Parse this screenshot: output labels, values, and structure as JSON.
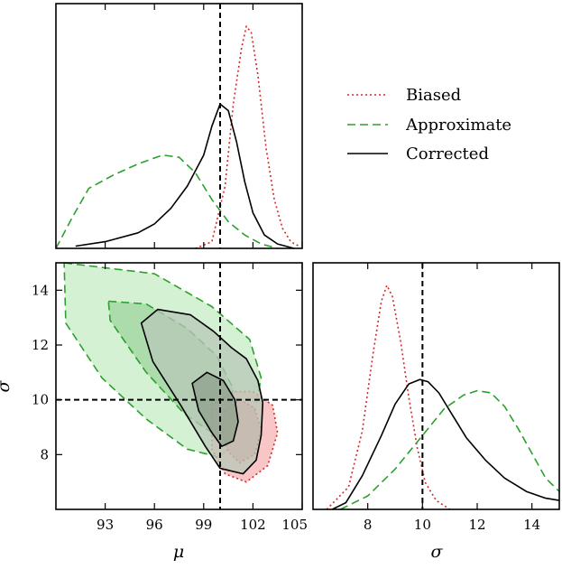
{
  "chart_data": {
    "type": "corner",
    "legend": {
      "placement": "top-right",
      "entries": [
        {
          "label": "Biased",
          "color": "#d62728",
          "style": "dotted"
        },
        {
          "label": "Approximate",
          "color": "#2ca02c",
          "style": "dashed"
        },
        {
          "label": "Corrected",
          "color": "#000000",
          "style": "solid"
        }
      ]
    },
    "truth": {
      "mu": 100,
      "sigma": 10
    },
    "panels": {
      "mu_marginal": {
        "xlim": [
          90,
          105
        ],
        "series": [
          {
            "name": "Biased",
            "x": [
              98.5,
              99.5,
              100.3,
              100.8,
              101.3,
              101.6,
              101.9,
              102.3,
              102.8,
              103.3,
              103.8,
              104.3,
              104.8
            ],
            "y": [
              0.0,
              0.03,
              0.28,
              0.65,
              0.9,
              1.0,
              0.97,
              0.78,
              0.45,
              0.22,
              0.09,
              0.03,
              0.01
            ]
          },
          {
            "name": "Approximate",
            "x": [
              90,
              91,
              92,
              93.5,
              95,
              96.5,
              97.5,
              98.5,
              99.5,
              100.5,
              101.5,
              102.5,
              103.5
            ],
            "y": [
              0.0,
              0.14,
              0.27,
              0.33,
              0.38,
              0.42,
              0.41,
              0.34,
              0.22,
              0.12,
              0.06,
              0.02,
              0.0
            ]
          },
          {
            "name": "Corrected",
            "x": [
              91.2,
              93,
              95,
              96,
              97,
              98,
              99,
              99.5,
              100,
              100.5,
              101,
              101.5,
              102,
              102.7,
              103.5,
              104.5
            ],
            "y": [
              0.01,
              0.03,
              0.07,
              0.11,
              0.18,
              0.28,
              0.42,
              0.55,
              0.65,
              0.62,
              0.48,
              0.3,
              0.16,
              0.06,
              0.02,
              0.0
            ]
          }
        ]
      },
      "joint": {
        "xlim": [
          90,
          105
        ],
        "ylim": [
          6,
          15
        ],
        "xticks": [
          "93",
          "96",
          "99",
          "102",
          "105"
        ],
        "yticks": [
          "8",
          "10",
          "12",
          "14"
        ],
        "xlabel": "μ",
        "ylabel": "σ",
        "regions": [
          {
            "name": "Approximate",
            "level": "outer",
            "fill": "#c6ecc6",
            "points": [
              [
                90.5,
                15
              ],
              [
                96,
                14.6
              ],
              [
                99.5,
                13.4
              ],
              [
                101.8,
                12.2
              ],
              [
                102.5,
                10.8
              ],
              [
                102,
                9.2
              ],
              [
                100,
                7.9
              ],
              [
                98,
                8.2
              ],
              [
                95.5,
                9.3
              ],
              [
                92.8,
                10.8
              ],
              [
                90.6,
                12.8
              ]
            ]
          },
          {
            "name": "Approximate",
            "level": "inner",
            "fill": "#9fd39f",
            "points": [
              [
                93.2,
                13.6
              ],
              [
                95.5,
                13.5
              ],
              [
                98,
                12.6
              ],
              [
                99.8,
                11.6
              ],
              [
                100.8,
                10.4
              ],
              [
                100.6,
                9.3
              ],
              [
                99.5,
                8.8
              ],
              [
                97.8,
                9.5
              ],
              [
                95.5,
                11
              ],
              [
                93.3,
                12.9
              ]
            ]
          },
          {
            "name": "Biased",
            "level": "outer",
            "fill": "#f6b3b3",
            "points": [
              [
                99.5,
                9.8
              ],
              [
                100.8,
                10.3
              ],
              [
                102,
                10.3
              ],
              [
                103.2,
                9.8
              ],
              [
                103.5,
                8.8
              ],
              [
                102.9,
                7.6
              ],
              [
                101.6,
                7.0
              ],
              [
                100.3,
                7.3
              ],
              [
                99.5,
                8.2
              ]
            ]
          },
          {
            "name": "Biased",
            "level": "inner",
            "fill": "#ee8f8f",
            "points": [
              [
                100.3,
                9.6
              ],
              [
                101.2,
                10.0
              ],
              [
                102.1,
                9.7
              ],
              [
                102.5,
                8.9
              ],
              [
                102.1,
                8.0
              ],
              [
                101.2,
                7.7
              ],
              [
                100.5,
                8.1
              ],
              [
                100.1,
                8.9
              ]
            ]
          },
          {
            "name": "Corrected",
            "level": "outer",
            "fill": "#b8c7b8",
            "points": [
              [
                95.2,
                12.8
              ],
              [
                96.2,
                13.3
              ],
              [
                98.2,
                13.1
              ],
              [
                99.6,
                12.5
              ],
              [
                100.7,
                11.9
              ],
              [
                101.6,
                11.5
              ],
              [
                102.3,
                10.7
              ],
              [
                102.6,
                9.9
              ],
              [
                102.5,
                8.7
              ],
              [
                102.2,
                7.8
              ],
              [
                101.4,
                7.3
              ],
              [
                100,
                7.5
              ],
              [
                99.1,
                8.3
              ],
              [
                97.6,
                9.8
              ],
              [
                95.9,
                11.4
              ]
            ]
          },
          {
            "name": "Corrected",
            "level": "inner",
            "fill": "#8da08d",
            "points": [
              [
                98.3,
                10.6
              ],
              [
                99.2,
                11
              ],
              [
                100.2,
                10.7
              ],
              [
                100.9,
                10.0
              ],
              [
                101.1,
                9.2
              ],
              [
                100.8,
                8.5
              ],
              [
                100.1,
                8.3
              ],
              [
                99.5,
                8.8
              ],
              [
                98.7,
                9.6
              ]
            ]
          }
        ]
      },
      "sigma_marginal": {
        "xlim": [
          6,
          15
        ],
        "xticks": [
          "8",
          "10",
          "12",
          "14"
        ],
        "xlabel": "σ",
        "series": [
          {
            "name": "Biased",
            "x": [
              6.5,
              7.3,
              7.8,
              8.2,
              8.5,
              8.7,
              8.9,
              9.2,
              9.5,
              9.8,
              10.1,
              10.5,
              11.0
            ],
            "y": [
              0.0,
              0.1,
              0.35,
              0.7,
              0.93,
              1.0,
              0.95,
              0.75,
              0.5,
              0.28,
              0.12,
              0.04,
              0.0
            ]
          },
          {
            "name": "Approximate",
            "x": [
              7.0,
              8.0,
              9.0,
              10.0,
              10.8,
              11.5,
              12.0,
              12.5,
              13.0,
              13.5,
              14.0,
              14.5,
              15.0
            ],
            "y": [
              0.0,
              0.06,
              0.18,
              0.33,
              0.45,
              0.51,
              0.53,
              0.52,
              0.46,
              0.36,
              0.25,
              0.14,
              0.08
            ]
          },
          {
            "name": "Corrected",
            "x": [
              6.7,
              7.2,
              7.8,
              8.5,
              9.0,
              9.5,
              9.9,
              10.2,
              10.6,
              11.0,
              11.6,
              12.3,
              13.0,
              13.8,
              14.5,
              15.0
            ],
            "y": [
              0.0,
              0.03,
              0.15,
              0.33,
              0.47,
              0.56,
              0.58,
              0.57,
              0.52,
              0.44,
              0.32,
              0.22,
              0.14,
              0.08,
              0.05,
              0.04
            ]
          }
        ]
      }
    }
  }
}
